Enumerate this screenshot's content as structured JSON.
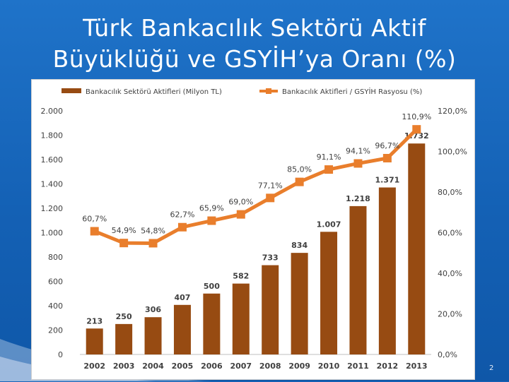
{
  "slide": {
    "title_line1": "Türk Bankacılık Sektörü Aktif",
    "title_line2": "Büyüklüğü ve GSYİH’ya Oranı (%)",
    "page_number": "2"
  },
  "colors": {
    "background": "#1763b8",
    "bar": "#974b12",
    "line": "#e97e2c",
    "text": "#404040"
  },
  "chart_data": {
    "type": "bar",
    "categories": [
      "2002",
      "2003",
      "2004",
      "2005",
      "2006",
      "2007",
      "2008",
      "2009",
      "2010",
      "2011",
      "2012",
      "2013"
    ],
    "series": [
      {
        "name": "Bankacılık Sektörü Aktifleri (Milyon TL)",
        "type": "bar",
        "axis": "left",
        "values": [
          213,
          250,
          306,
          407,
          500,
          582,
          733,
          834,
          1007,
          1218,
          1371,
          1732
        ],
        "labels": [
          "213",
          "250",
          "306",
          "407",
          "500",
          "582",
          "733",
          "834",
          "1.007",
          "1.218",
          "1.371",
          "1.732"
        ]
      },
      {
        "name": "Bankacılık Aktifleri / GSYİH Rasyosu (%)",
        "type": "line",
        "axis": "right",
        "values": [
          60.7,
          54.9,
          54.8,
          62.7,
          65.9,
          69.0,
          77.1,
          85.0,
          91.1,
          94.1,
          96.7,
          110.9
        ],
        "labels": [
          "60,7%",
          "54,9%",
          "54,8%",
          "62,7%",
          "65,9%",
          "69,0%",
          "77,1%",
          "85,0%",
          "91,1%",
          "94,1%",
          "96,7%",
          "110,9%"
        ]
      }
    ],
    "left_axis": {
      "ylim": [
        0,
        2000
      ],
      "ticks": [
        0,
        200,
        400,
        600,
        800,
        1000,
        1200,
        1400,
        1600,
        1800,
        2000
      ],
      "tick_labels": [
        "0",
        "200",
        "400",
        "600",
        "800",
        "1.000",
        "1.200",
        "1.400",
        "1.600",
        "1.800",
        "2.000"
      ]
    },
    "right_axis": {
      "ylim": [
        0,
        120
      ],
      "ticks": [
        0,
        20,
        40,
        60,
        80,
        100,
        120
      ],
      "tick_labels": [
        "0,0%",
        "20,0%",
        "40,0%",
        "60,0%",
        "80,0%",
        "100,0%",
        "120,0%"
      ]
    },
    "legend_position": "top",
    "grid": false
  }
}
